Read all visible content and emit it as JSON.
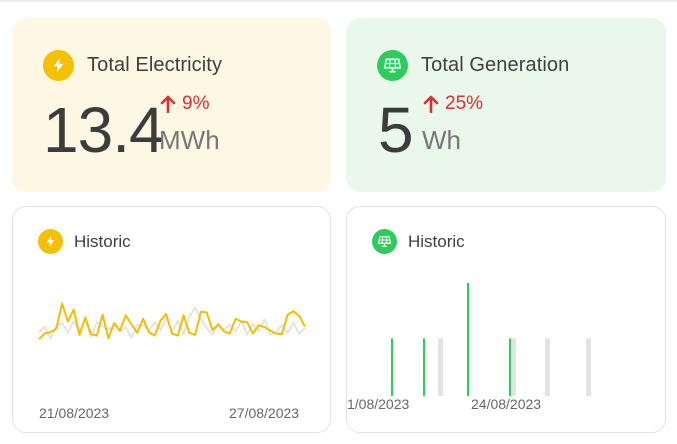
{
  "colors": {
    "electricity_accent": "#f5c000",
    "generation_accent": "#2ecc5e",
    "increase": "#d63030",
    "previous_period": "#e3e3e3",
    "current_line": "#f0c000",
    "current_bar": "#2ecc5e"
  },
  "electricity": {
    "icon": "lightning-bolt-icon",
    "title": "Total Electricity",
    "value": "13.4",
    "unit": "MWh",
    "change_icon": "arrow-up-icon",
    "change": "9%"
  },
  "generation": {
    "icon": "solar-panel-icon",
    "title": "Total Generation",
    "value": "5",
    "unit": "Wh",
    "change_icon": "arrow-up-icon",
    "change": "25%"
  },
  "electricity_history": {
    "icon": "lightning-bolt-icon",
    "title": "Historic",
    "x_tick_labels": [
      "21/08/2023",
      "27/08/2023"
    ]
  },
  "generation_history": {
    "icon": "solar-panel-icon",
    "title": "Historic",
    "x_tick_labels": [
      "1/08/2023",
      "24/08/2023"
    ]
  },
  "chart_data": [
    {
      "type": "line",
      "grid": false,
      "legend": "none",
      "x_tick_labels": [
        "21/08/2023",
        "27/08/2023"
      ],
      "ylim": [
        0,
        1
      ],
      "series": [
        {
          "values": [
            0.37,
            0.45,
            0.47,
            0.52,
            0.88,
            0.62,
            0.79,
            0.43,
            0.68,
            0.44,
            0.42,
            0.72,
            0.38,
            0.6,
            0.49,
            0.71,
            0.58,
            0.46,
            0.66,
            0.47,
            0.42,
            0.63,
            0.73,
            0.45,
            0.42,
            0.71,
            0.46,
            0.43,
            0.76,
            0.75,
            0.5,
            0.58,
            0.48,
            0.45,
            0.66,
            0.62,
            0.61,
            0.45,
            0.57,
            0.54,
            0.49,
            0.45,
            0.44,
            0.72,
            0.77,
            0.7,
            0.55
          ]
        },
        {
          "values": [
            0.47,
            0.55,
            0.38,
            0.55,
            0.6,
            0.46,
            0.63,
            0.46,
            0.65,
            0.4,
            0.61,
            0.55,
            0.5,
            0.57,
            0.48,
            0.54,
            0.39,
            0.57,
            0.57,
            0.49,
            0.61,
            0.5,
            0.67,
            0.47,
            0.63,
            0.44,
            0.69,
            0.82,
            0.66,
            0.53,
            0.44,
            0.59,
            0.5,
            0.58,
            0.48,
            0.63,
            0.44,
            0.59,
            0.48,
            0.65,
            0.43,
            0.47,
            0.57,
            0.46,
            0.6,
            0.45,
            0.53
          ]
        }
      ]
    },
    {
      "type": "bar",
      "grid": false,
      "legend": "none",
      "x_tick_labels": [
        "1/08/2023",
        "24/08/2023"
      ],
      "ylim": [
        0,
        1
      ],
      "series": [
        {
          "values": [
            0.51,
            0.51,
            0,
            1.0,
            0.51,
            0,
            0
          ]
        },
        {
          "values": [
            0,
            0,
            0.51,
            0,
            0.51,
            0.51,
            0.51
          ]
        }
      ]
    }
  ]
}
